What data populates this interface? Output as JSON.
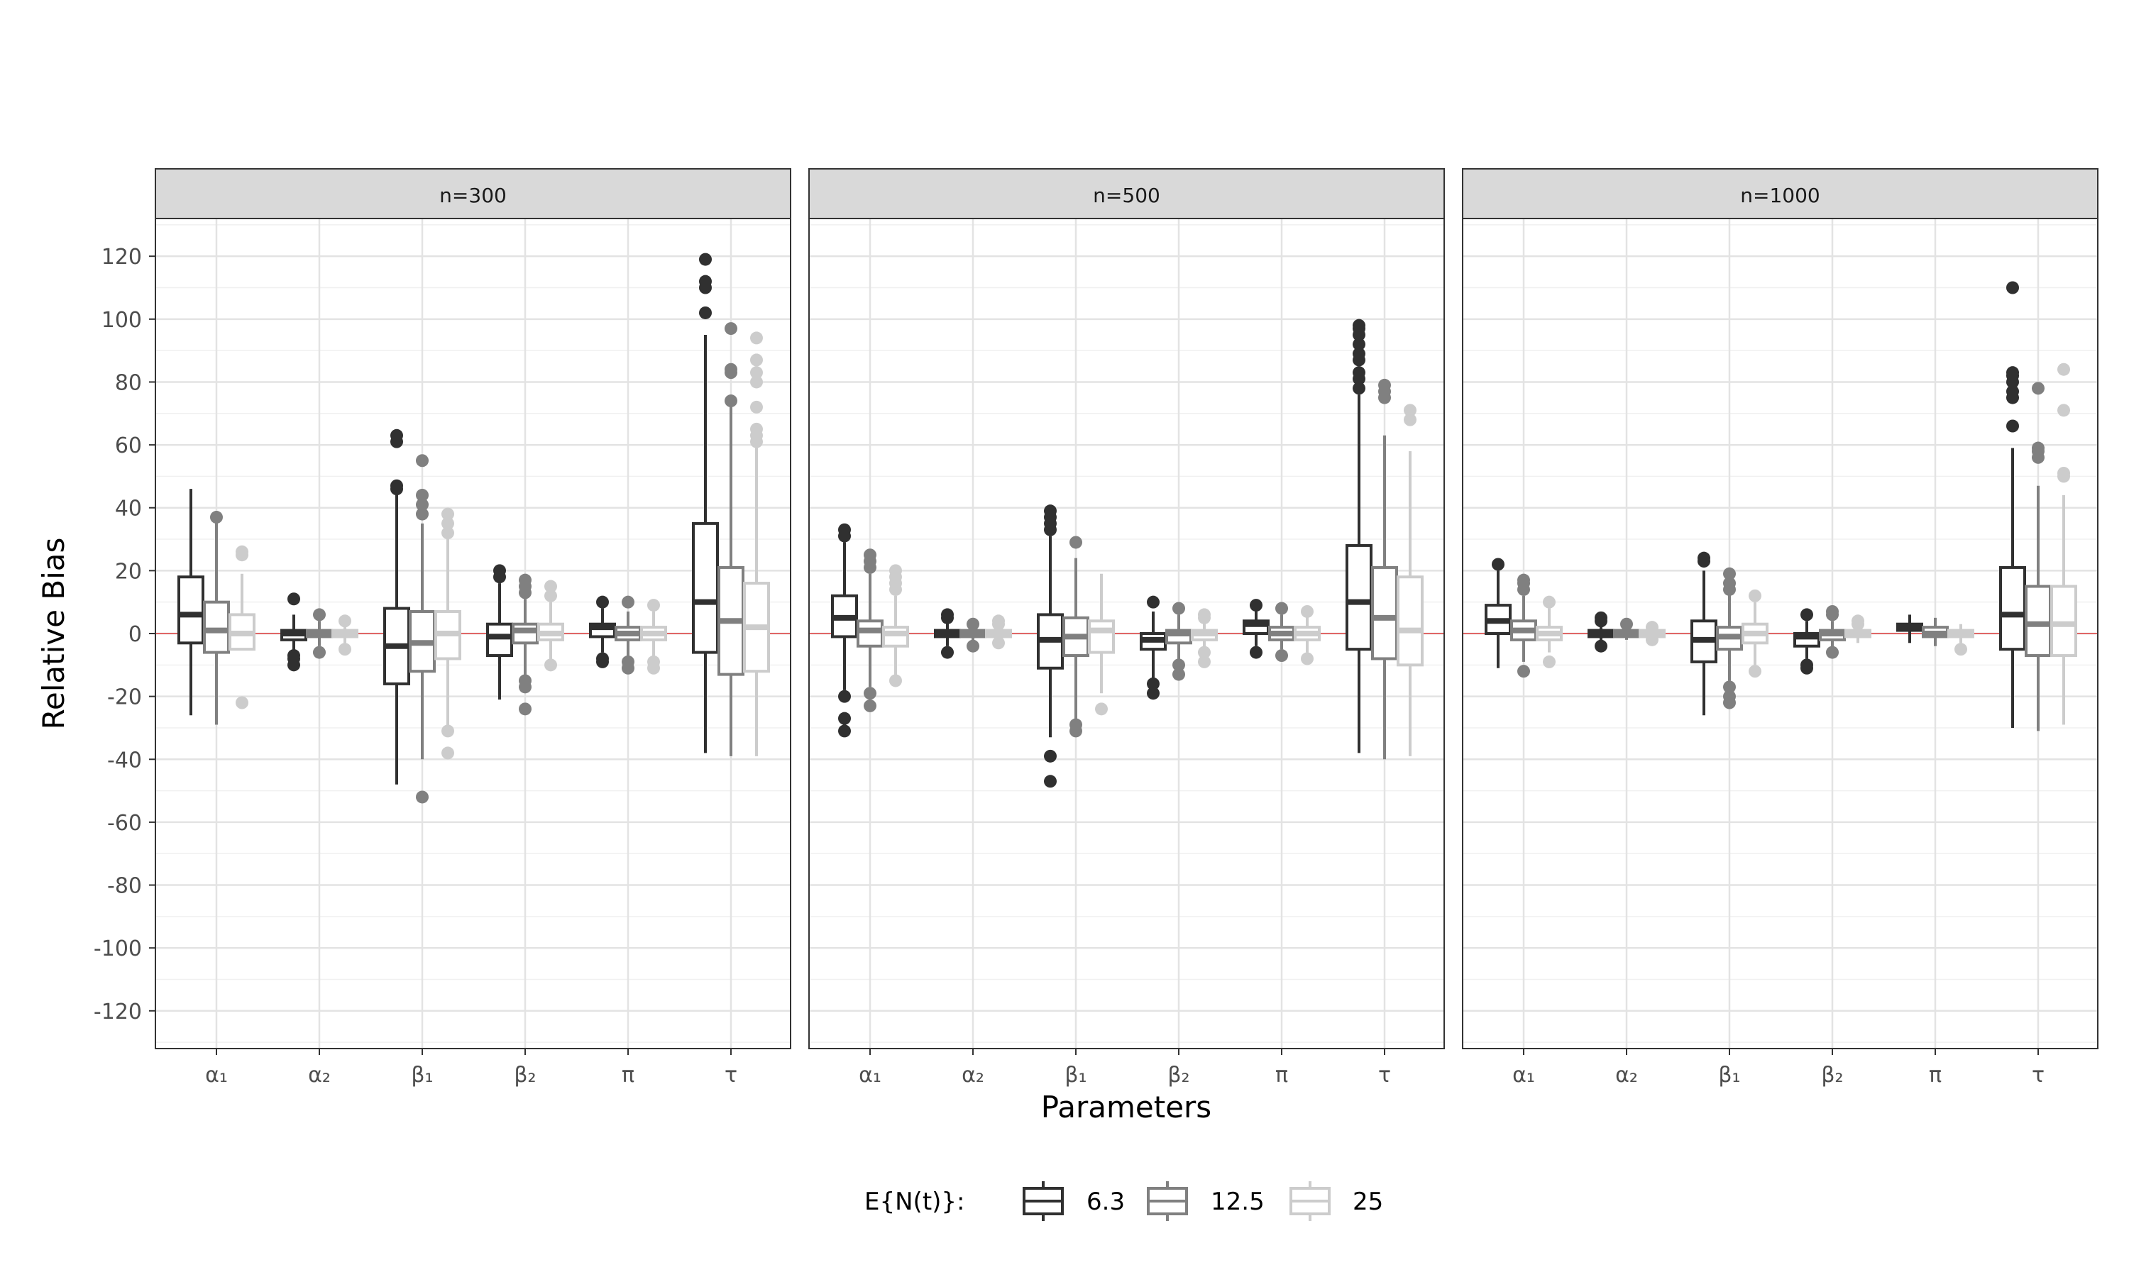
{
  "chart_data": {
    "type": "boxplot",
    "xlabel": "Parameters",
    "ylabel": "Relative Bias",
    "ylim": [
      -132,
      132
    ],
    "yticks": [
      -120,
      -100,
      -80,
      -60,
      -40,
      -20,
      0,
      20,
      40,
      60,
      80,
      100,
      120
    ],
    "ytick_labels": [
      "-120",
      "-100",
      "-80",
      "-60",
      "-40",
      "-20",
      "0",
      "20",
      "40",
      "60",
      "80",
      "100",
      "120"
    ],
    "reference_line": {
      "y": 0,
      "color": "#e06666"
    },
    "categories": [
      "α₁",
      "α₂",
      "β₁",
      "β₂",
      "π",
      "τ"
    ],
    "legend": {
      "title": "E{N(t)}:",
      "position": "bottom",
      "entries": [
        {
          "label": "6.3",
          "color": "#303030"
        },
        {
          "label": "12.5",
          "color": "#808080"
        },
        {
          "label": "25",
          "color": "#cccccc"
        }
      ]
    },
    "series_colors": [
      "#303030",
      "#808080",
      "#cccccc"
    ],
    "panels": [
      {
        "label": "n=300",
        "boxes": [
          [
            {
              "lo": -26,
              "q1": -3,
              "med": 6,
              "q3": 18,
              "hi": 46,
              "out": []
            },
            {
              "lo": -29,
              "q1": -6,
              "med": 1,
              "q3": 10,
              "hi": 36,
              "out": [
                37
              ]
            },
            {
              "lo": -5,
              "q1": -5,
              "med": 0,
              "q3": 6,
              "hi": 19,
              "out": [
                -22,
                25,
                26
              ]
            }
          ],
          [
            {
              "lo": -6,
              "q1": -2,
              "med": 0,
              "q3": 1,
              "hi": 6,
              "out": [
                -10,
                -8,
                -7,
                11
              ]
            },
            {
              "lo": -4,
              "q1": -1,
              "med": 0,
              "q3": 1,
              "hi": 4,
              "out": [
                -6,
                6
              ]
            },
            {
              "lo": -3,
              "q1": -1,
              "med": 0,
              "q3": 1,
              "hi": 3,
              "out": [
                -5,
                4
              ]
            }
          ],
          [
            {
              "lo": -48,
              "q1": -16,
              "med": -4,
              "q3": 8,
              "hi": 44,
              "out": [
                46,
                47,
                61,
                63
              ]
            },
            {
              "lo": -40,
              "q1": -12,
              "med": -3,
              "q3": 7,
              "hi": 35,
              "out": [
                -52,
                38,
                41,
                44,
                55
              ]
            },
            {
              "lo": -30,
              "q1": -8,
              "med": 0,
              "q3": 7,
              "hi": 30,
              "out": [
                -38,
                -31,
                32,
                35,
                38
              ]
            }
          ],
          [
            {
              "lo": -21,
              "q1": -7,
              "med": -1,
              "q3": 3,
              "hi": 16,
              "out": [
                18,
                20
              ]
            },
            {
              "lo": -14,
              "q1": -3,
              "med": 1,
              "q3": 3,
              "hi": 11,
              "out": [
                -24,
                -17,
                -15,
                13,
                15,
                17
              ]
            },
            {
              "lo": -9,
              "q1": -2,
              "med": 0,
              "q3": 3,
              "hi": 10,
              "out": [
                -10,
                12,
                15
              ]
            }
          ],
          [
            {
              "lo": -6,
              "q1": -1,
              "med": 2,
              "q3": 3,
              "hi": 8,
              "out": [
                -9,
                -8,
                10
              ]
            },
            {
              "lo": -7,
              "q1": -2,
              "med": 0,
              "q3": 2,
              "hi": 7,
              "out": [
                -11,
                -9,
                10
              ]
            },
            {
              "lo": -8,
              "q1": -2,
              "med": 0,
              "q3": 2,
              "hi": 7,
              "out": [
                -11,
                -9,
                9
              ]
            }
          ],
          [
            {
              "lo": -38,
              "q1": -6,
              "med": 10,
              "q3": 35,
              "hi": 95,
              "out": [
                102,
                110,
                112,
                119
              ]
            },
            {
              "lo": -39,
              "q1": -13,
              "med": 4,
              "q3": 21,
              "hi": 73,
              "out": [
                74,
                83,
                84,
                97
              ]
            },
            {
              "lo": -39,
              "q1": -12,
              "med": 2,
              "q3": 16,
              "hi": 60,
              "out": [
                61,
                63,
                65,
                72,
                80,
                83,
                87,
                94
              ]
            }
          ]
        ]
      },
      {
        "label": "n=500",
        "boxes": [
          [
            {
              "lo": -18,
              "q1": -1,
              "med": 5,
              "q3": 12,
              "hi": 29,
              "out": [
                -31,
                -27,
                -20,
                31,
                33
              ]
            },
            {
              "lo": -17,
              "q1": -4,
              "med": 1,
              "q3": 4,
              "hi": 19,
              "out": [
                -23,
                -19,
                21,
                23,
                25
              ]
            },
            {
              "lo": -14,
              "q1": -4,
              "med": 0,
              "q3": 2,
              "hi": 12,
              "out": [
                -15,
                14,
                16,
                18,
                20
              ]
            }
          ],
          [
            {
              "lo": -4,
              "q1": -1,
              "med": 0,
              "q3": 1,
              "hi": 4,
              "out": [
                -6,
                5,
                6
              ]
            },
            {
              "lo": -3,
              "q1": -1,
              "med": 0,
              "q3": 1,
              "hi": 3,
              "out": [
                -4,
                3
              ]
            },
            {
              "lo": -2,
              "q1": -1,
              "med": 0,
              "q3": 1,
              "hi": 2,
              "out": [
                -3,
                3,
                4
              ]
            }
          ],
          [
            {
              "lo": -33,
              "q1": -11,
              "med": -2,
              "q3": 6,
              "hi": 31,
              "out": [
                -47,
                -39,
                33,
                35,
                37,
                39
              ]
            },
            {
              "lo": -28,
              "q1": -7,
              "med": -1,
              "q3": 5,
              "hi": 24,
              "out": [
                -31,
                -29,
                29
              ]
            },
            {
              "lo": -19,
              "q1": -6,
              "med": 1,
              "q3": 4,
              "hi": 19,
              "out": [
                -24
              ]
            }
          ],
          [
            {
              "lo": -14,
              "q1": -5,
              "med": -2,
              "q3": 0,
              "hi": 7,
              "out": [
                -19,
                -16,
                10
              ]
            },
            {
              "lo": -9,
              "q1": -3,
              "med": 0,
              "q3": 1,
              "hi": 6,
              "out": [
                -13,
                -10,
                8
              ]
            },
            {
              "lo": -6,
              "q1": -2,
              "med": 0,
              "q3": 1,
              "hi": 4,
              "out": [
                -9,
                -6,
                5,
                6
              ]
            }
          ],
          [
            {
              "lo": -4,
              "q1": 0,
              "med": 3,
              "q3": 4,
              "hi": 8,
              "out": [
                -6,
                9
              ]
            },
            {
              "lo": -5,
              "q1": -2,
              "med": 0,
              "q3": 2,
              "hi": 6,
              "out": [
                -7,
                8
              ]
            },
            {
              "lo": -6,
              "q1": -2,
              "med": 0,
              "q3": 2,
              "hi": 6,
              "out": [
                -8,
                7
              ]
            }
          ],
          [
            {
              "lo": -38,
              "q1": -5,
              "med": 10,
              "q3": 28,
              "hi": 76,
              "out": [
                78,
                81,
                83,
                87,
                89,
                92,
                95,
                97,
                98
              ]
            },
            {
              "lo": -40,
              "q1": -8,
              "med": 5,
              "q3": 21,
              "hi": 63,
              "out": [
                75,
                77,
                79
              ]
            },
            {
              "lo": -39,
              "q1": -10,
              "med": 1,
              "q3": 18,
              "hi": 58,
              "out": [
                68,
                71
              ]
            }
          ]
        ]
      },
      {
        "label": "n=1000",
        "boxes": [
          [
            {
              "lo": -11,
              "q1": 0,
              "med": 4,
              "q3": 9,
              "hi": 20,
              "out": [
                22
              ]
            },
            {
              "lo": -9,
              "q1": -2,
              "med": 1,
              "q3": 4,
              "hi": 12,
              "out": [
                -12,
                14,
                16,
                17
              ]
            },
            {
              "lo": -6,
              "q1": -2,
              "med": 0,
              "q3": 2,
              "hi": 8,
              "out": [
                -9,
                10
              ]
            }
          ],
          [
            {
              "lo": -3,
              "q1": -1,
              "med": 0,
              "q3": 1,
              "hi": 3,
              "out": [
                -4,
                4,
                5
              ]
            },
            {
              "lo": -2,
              "q1": -1,
              "med": 0,
              "q3": 1,
              "hi": 2,
              "out": [
                3
              ]
            },
            {
              "lo": -2,
              "q1": -1,
              "med": 0,
              "q3": 1,
              "hi": 2,
              "out": [
                -2,
                2
              ]
            }
          ],
          [
            {
              "lo": -26,
              "q1": -9,
              "med": -2,
              "q3": 4,
              "hi": 20,
              "out": [
                23,
                24
              ]
            },
            {
              "lo": -15,
              "q1": -5,
              "med": -1,
              "q3": 2,
              "hi": 13,
              "out": [
                -22,
                -20,
                -17,
                14,
                16,
                19
              ]
            },
            {
              "lo": -10,
              "q1": -3,
              "med": 0,
              "q3": 3,
              "hi": 10,
              "out": [
                -12,
                12
              ]
            }
          ],
          [
            {
              "lo": -8,
              "q1": -4,
              "med": -1,
              "q3": 0,
              "hi": 4,
              "out": [
                -11,
                -10,
                6
              ]
            },
            {
              "lo": -5,
              "q1": -2,
              "med": 0,
              "q3": 1,
              "hi": 4,
              "out": [
                -6,
                6,
                7
              ]
            },
            {
              "lo": -3,
              "q1": -1,
              "med": 0,
              "q3": 1,
              "hi": 3,
              "out": [
                3,
                4
              ]
            }
          ],
          [
            {
              "lo": -3,
              "q1": 1,
              "med": 2,
              "q3": 3,
              "hi": 6,
              "out": []
            },
            {
              "lo": -4,
              "q1": -1,
              "med": 0,
              "q3": 2,
              "hi": 5,
              "out": []
            },
            {
              "lo": -3,
              "q1": -1,
              "med": 0,
              "q3": 1,
              "hi": 3,
              "out": [
                -5
              ]
            }
          ],
          [
            {
              "lo": -30,
              "q1": -5,
              "med": 6,
              "q3": 21,
              "hi": 59,
              "out": [
                66,
                75,
                77,
                80,
                82,
                83,
                110
              ]
            },
            {
              "lo": -31,
              "q1": -7,
              "med": 3,
              "q3": 15,
              "hi": 47,
              "out": [
                56,
                58,
                59,
                78
              ]
            },
            {
              "lo": -29,
              "q1": -7,
              "med": 3,
              "q3": 15,
              "hi": 44,
              "out": [
                50,
                51,
                71,
                84
              ]
            }
          ]
        ]
      }
    ]
  }
}
